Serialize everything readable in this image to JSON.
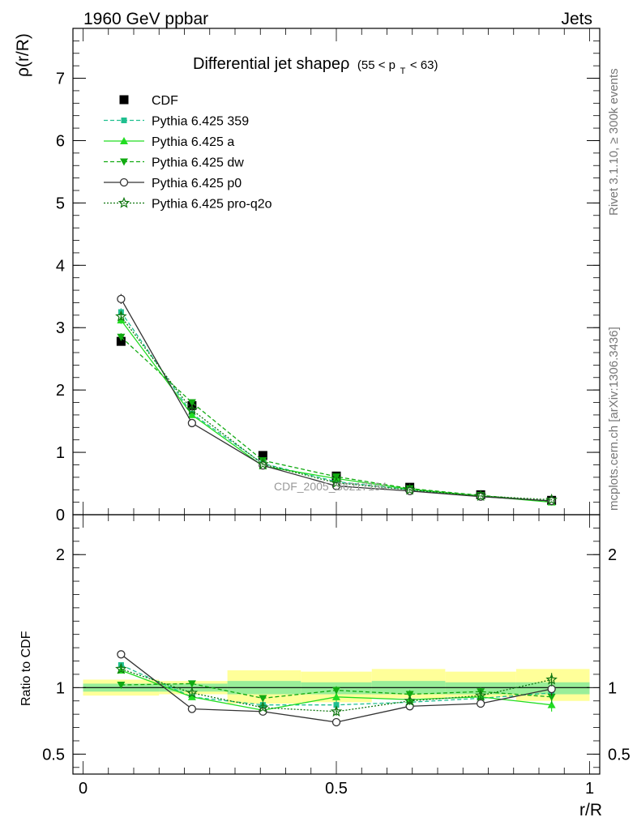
{
  "header": {
    "energy_label": "1960 GeV ppbar",
    "process_label": "Jets",
    "side_label_top": "Rivet 3.1.10, ≥ 300k events",
    "side_label_bottom": "mcplots.cern.ch [arXiv:1306.3436]",
    "watermark": "CDF_2005_S6217184"
  },
  "chart_data": [
    {
      "type": "line",
      "panel": "main",
      "title_main": "Differential jet shapeρ",
      "title_range_prefix": "(55 < p",
      "title_range_sub": "T",
      "title_range_suffix": " < 63)",
      "ylabel": "ρ(r/R)",
      "xlabel": "r/R",
      "ylim": [
        0,
        7.8
      ],
      "yticks": [
        0,
        1,
        2,
        3,
        4,
        5,
        6,
        7
      ],
      "ytick_labels": [
        "0",
        "1",
        "2",
        "3",
        "4",
        "5",
        "6",
        "7"
      ],
      "xlim": [
        -0.02,
        1.02
      ],
      "x": [
        0.075,
        0.215,
        0.355,
        0.5,
        0.645,
        0.785,
        0.925
      ],
      "series": [
        {
          "name": "CDF",
          "values": [
            2.78,
            1.75,
            0.95,
            0.62,
            0.44,
            0.32,
            0.23
          ],
          "color": "#000000",
          "marker": "square",
          "dash": "none",
          "errors": [
            0.06,
            0.05,
            0.03,
            0.03,
            0.02,
            0.02,
            0.02
          ]
        },
        {
          "name": "Pythia 6.425 359",
          "values": [
            3.25,
            1.62,
            0.82,
            0.53,
            0.4,
            0.29,
            0.22
          ],
          "color": "#1fbf8f",
          "marker": "small-square",
          "dash": "5,3",
          "errors": [
            0.06,
            0.04,
            0.02,
            0.02,
            0.02,
            0.01,
            0.01
          ]
        },
        {
          "name": "Pythia 6.425 a",
          "values": [
            3.12,
            1.6,
            0.78,
            0.58,
            0.41,
            0.3,
            0.2
          ],
          "color": "#22dd22",
          "marker": "triangle-up",
          "dash": "none",
          "errors": [
            0.06,
            0.04,
            0.02,
            0.02,
            0.02,
            0.01,
            0.01
          ]
        },
        {
          "name": "Pythia 6.425 dw",
          "values": [
            2.85,
            1.8,
            0.87,
            0.61,
            0.42,
            0.31,
            0.21
          ],
          "color": "#11aa11",
          "marker": "triangle-down",
          "dash": "5,3",
          "errors": [
            0.06,
            0.04,
            0.02,
            0.02,
            0.02,
            0.01,
            0.01
          ]
        },
        {
          "name": "Pythia 6.425 p0",
          "values": [
            3.46,
            1.47,
            0.79,
            0.46,
            0.38,
            0.29,
            0.22
          ],
          "color": "#333333",
          "marker": "open-circle",
          "dash": "none",
          "errors": [
            0.08,
            0.04,
            0.02,
            0.02,
            0.02,
            0.01,
            0.01
          ]
        },
        {
          "name": "Pythia 6.425 pro-q2o",
          "values": [
            3.18,
            1.68,
            0.81,
            0.51,
            0.4,
            0.3,
            0.24
          ],
          "color": "#117711",
          "marker": "open-star",
          "dash": "2,2",
          "errors": [
            0.06,
            0.04,
            0.02,
            0.02,
            0.02,
            0.01,
            0.01
          ]
        }
      ]
    },
    {
      "type": "line",
      "panel": "ratio",
      "ylabel": "Ratio to CDF",
      "xlabel": "r/R",
      "ylim": [
        0.35,
        2.3
      ],
      "yticks": [
        0.5,
        1,
        2
      ],
      "ytick_labels": [
        "0.5",
        "1",
        "2"
      ],
      "xticks": [
        0,
        0.5,
        1
      ],
      "xtick_labels": [
        "0",
        "0.5",
        "1"
      ],
      "xlim": [
        -0.02,
        1.02
      ],
      "x": [
        0.075,
        0.215,
        0.355,
        0.5,
        0.645,
        0.785,
        0.925
      ],
      "reference_line": 1,
      "bands": {
        "bin_edges": [
          0,
          0.15,
          0.285,
          0.43,
          0.57,
          0.715,
          0.855,
          1.0
        ],
        "inner_low": [
          0.97,
          0.97,
          0.95,
          0.95,
          0.95,
          0.95,
          0.95
        ],
        "inner_high": [
          1.03,
          1.03,
          1.05,
          1.04,
          1.05,
          1.04,
          1.04
        ],
        "outer_low": [
          0.94,
          0.95,
          0.88,
          0.89,
          0.92,
          0.93,
          0.9
        ],
        "outer_high": [
          1.06,
          1.05,
          1.13,
          1.12,
          1.14,
          1.12,
          1.14
        ],
        "inner_color": "#99ee99",
        "outer_color": "#ffff99"
      },
      "series": [
        {
          "name": "Pythia 6.425 359",
          "values": [
            1.17,
            0.93,
            0.87,
            0.87,
            0.89,
            0.92,
            0.96
          ],
          "color": "#1fbf8f",
          "marker": "small-square",
          "dash": "5,3",
          "errors": [
            0.02,
            0.02,
            0.02,
            0.03,
            0.03,
            0.03,
            0.05
          ]
        },
        {
          "name": "Pythia 6.425 a",
          "values": [
            1.13,
            0.93,
            0.83,
            0.93,
            0.91,
            0.93,
            0.87
          ],
          "color": "#22dd22",
          "marker": "triangle-up",
          "dash": "none",
          "errors": [
            0.02,
            0.02,
            0.02,
            0.03,
            0.03,
            0.03,
            0.05
          ]
        },
        {
          "name": "Pythia 6.425 dw",
          "values": [
            1.02,
            1.03,
            0.92,
            0.98,
            0.95,
            0.97,
            0.93
          ],
          "color": "#11aa11",
          "marker": "triangle-down",
          "dash": "5,3",
          "errors": [
            0.02,
            0.02,
            0.02,
            0.03,
            0.03,
            0.03,
            0.05
          ]
        },
        {
          "name": "Pythia 6.425 p0",
          "values": [
            1.25,
            0.84,
            0.82,
            0.74,
            0.86,
            0.88,
            0.99
          ],
          "color": "#333333",
          "marker": "open-circle",
          "dash": "none",
          "errors": [
            0.02,
            0.02,
            0.02,
            0.03,
            0.03,
            0.03,
            0.05
          ]
        },
        {
          "name": "Pythia 6.425 pro-q2o",
          "values": [
            1.14,
            0.96,
            0.85,
            0.82,
            0.9,
            0.94,
            1.06
          ],
          "color": "#117711",
          "marker": "open-star",
          "dash": "2,2",
          "errors": [
            0.02,
            0.02,
            0.02,
            0.03,
            0.03,
            0.03,
            0.05
          ]
        }
      ]
    }
  ]
}
